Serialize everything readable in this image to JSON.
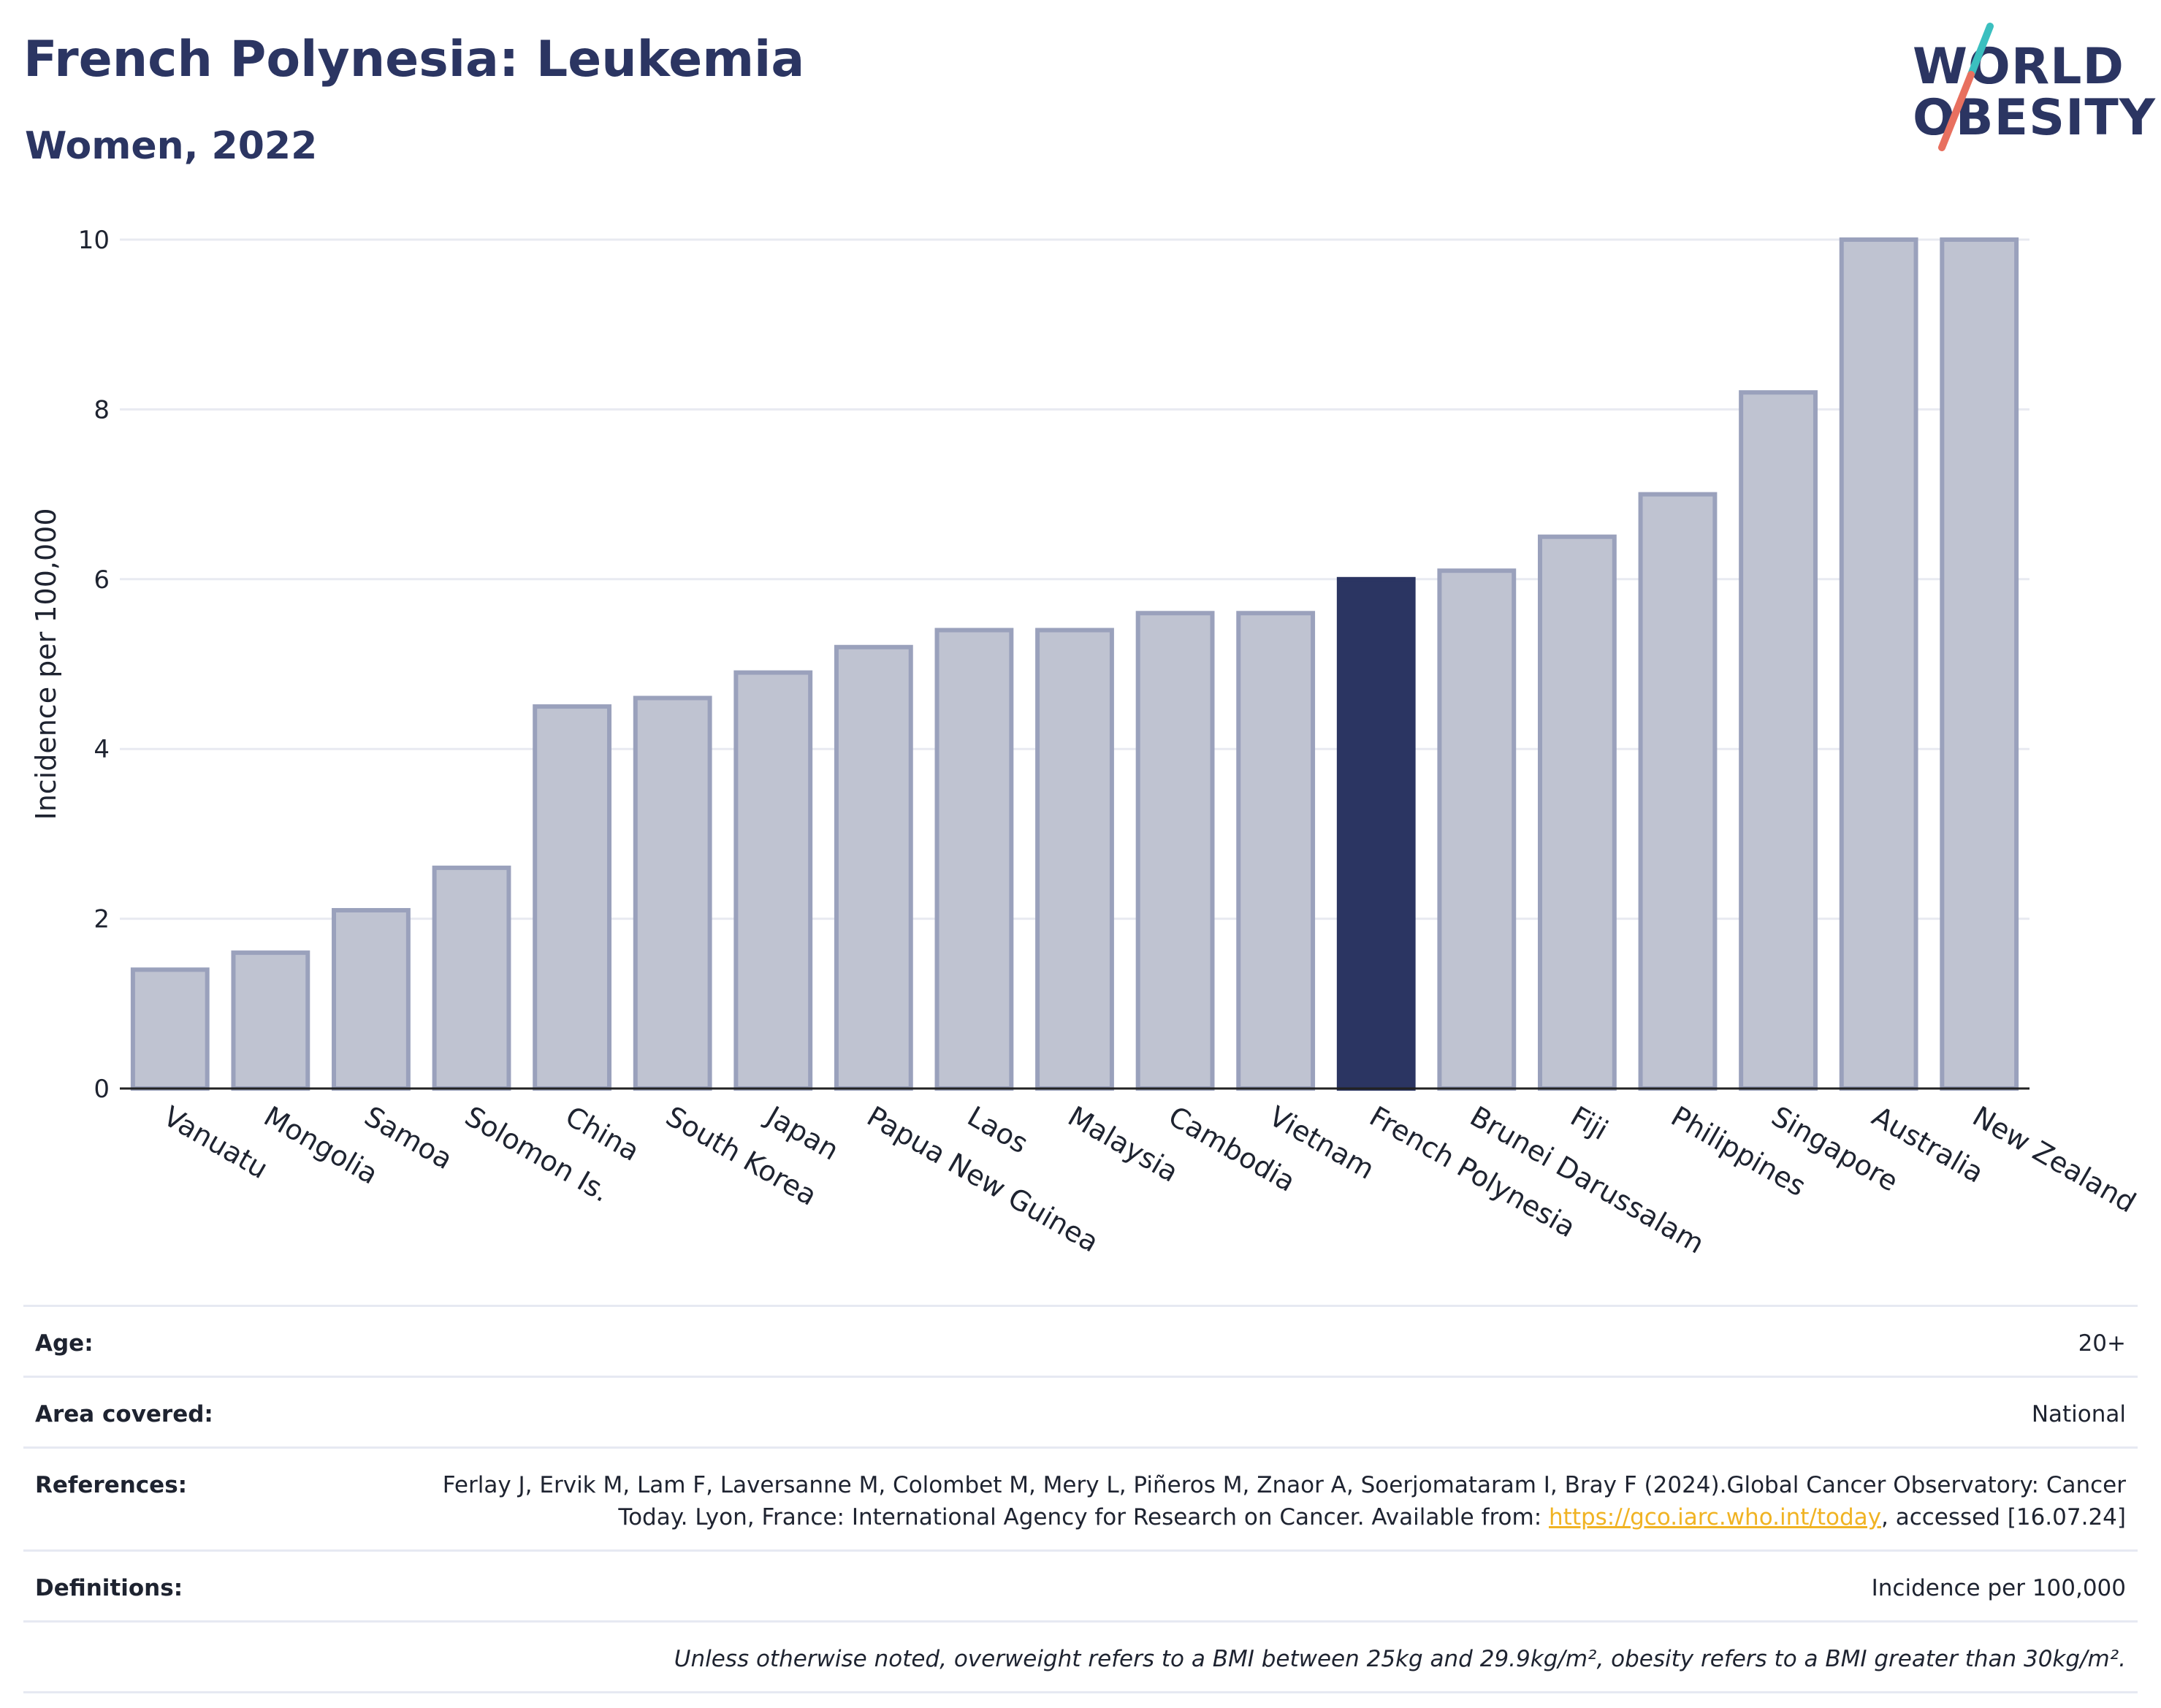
{
  "header": {
    "title": "French Polynesia: Leukemia",
    "subtitle": "Women, 2022"
  },
  "logo": {
    "line1": "WORLD",
    "line2": "OBESITY"
  },
  "colors": {
    "bar": "#bfc3d1",
    "bar_border": "#9aa1bc",
    "highlight": "#2b3562",
    "grid": "#e8eaf1",
    "logo_teal": "#3bbfbf",
    "logo_coral": "#e8705f"
  },
  "chart_data": {
    "type": "bar",
    "title": "French Polynesia: Leukemia",
    "subtitle": "Women, 2022",
    "xlabel": "",
    "ylabel": "Incidence per 100,000",
    "ylim": [
      0,
      10
    ],
    "yticks": [
      0,
      2,
      4,
      6,
      8,
      10
    ],
    "grid": true,
    "highlight": "French Polynesia",
    "categories": [
      "Vanuatu",
      "Mongolia",
      "Samoa",
      "Solomon Is.",
      "China",
      "South Korea",
      "Japan",
      "Papua New Guinea",
      "Laos",
      "Malaysia",
      "Cambodia",
      "Vietnam",
      "French Polynesia",
      "Brunei Darussalam",
      "Fiji",
      "Philippines",
      "Singapore",
      "Australia",
      "New Zealand"
    ],
    "values": [
      1.4,
      1.6,
      2.1,
      2.6,
      4.5,
      4.6,
      4.9,
      5.2,
      5.4,
      5.4,
      5.6,
      5.6,
      6.0,
      6.1,
      6.5,
      7.0,
      8.2,
      10.0,
      10.0
    ]
  },
  "info": {
    "age_label": "Age:",
    "age_value": "20+",
    "area_label": "Area covered:",
    "area_value": "National",
    "references_label": "References:",
    "references_text_1": "Ferlay J, Ervik M, Lam F, Laversanne M, Colombet M, Mery L, Piñeros M, Znaor A, Soerjomataram I, Bray F (2024).Global Cancer Observatory: Cancer Today. Lyon, France: International Agency for Research on Cancer. Available from: ",
    "references_link": "https://gco.iarc.who.int/today",
    "references_text_2": ", accessed [16.07.24]",
    "definitions_label": "Definitions:",
    "definitions_value": "Incidence per 100,000",
    "note": "Unless otherwise noted, overweight refers to a BMI between 25kg and 29.9kg/m², obesity refers to a BMI greater than 30kg/m²."
  }
}
